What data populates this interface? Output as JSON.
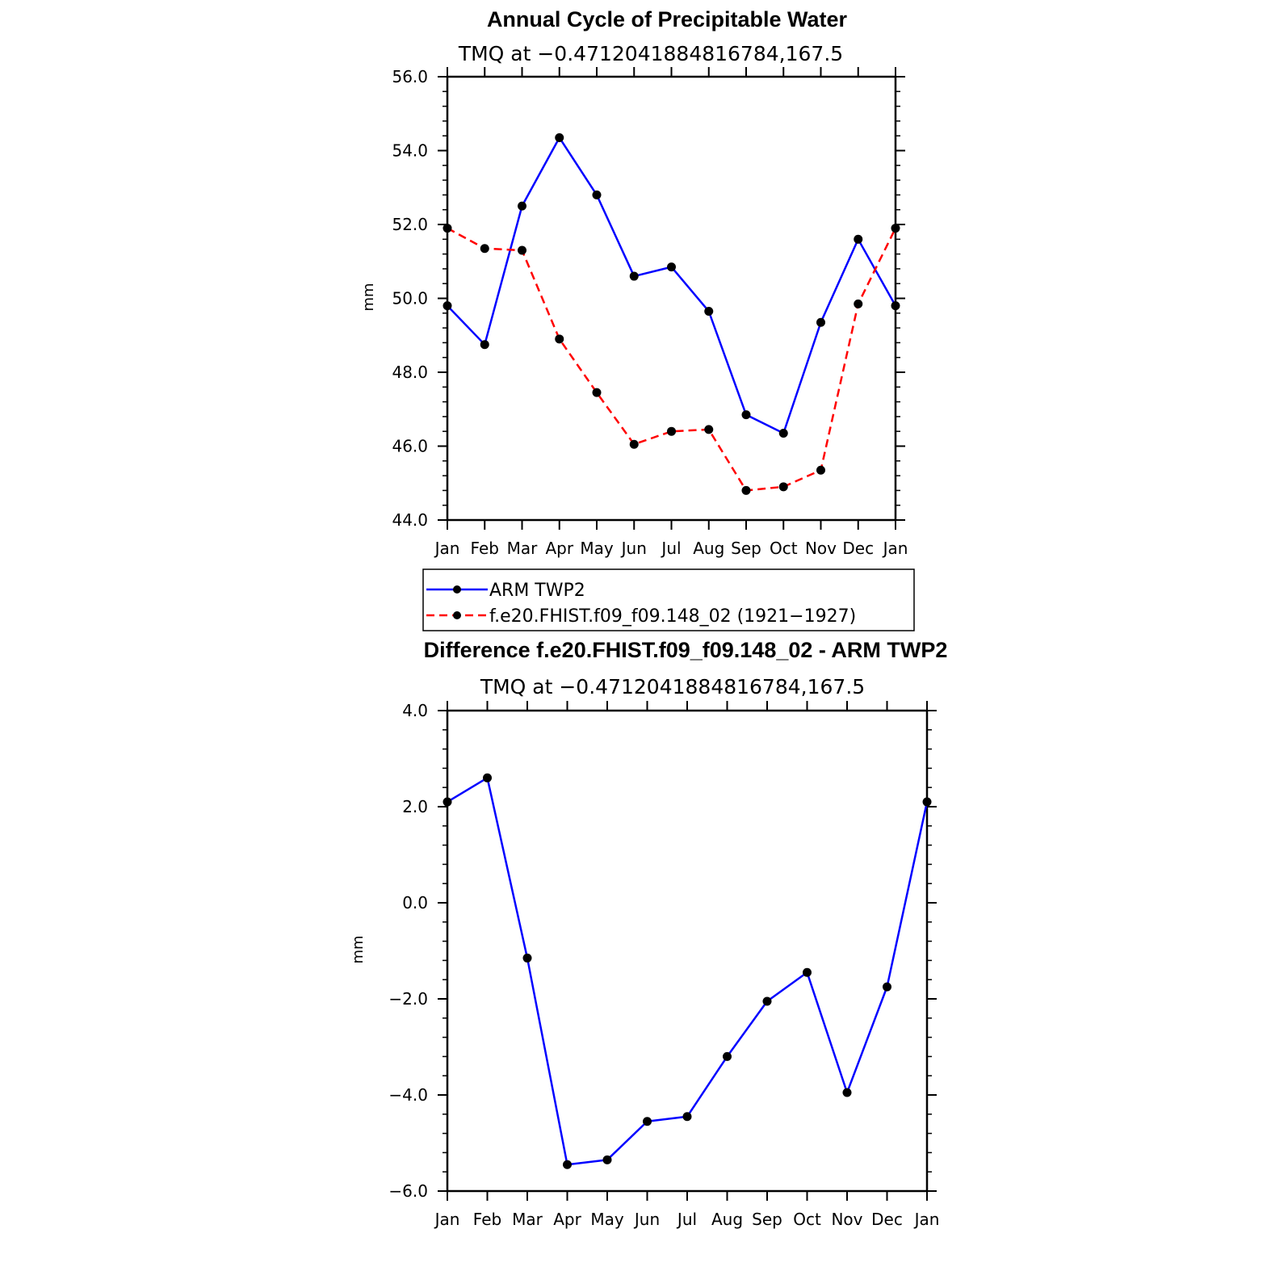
{
  "colors": {
    "arm": "#0000ff",
    "model": "#ff0000",
    "marker": "#000000"
  },
  "chart_data": [
    {
      "type": "line",
      "title": "Annual Cycle of Precipitable Water",
      "subtitle": "TMQ at −0.4712041884816784,167.5",
      "ylabel": "mm",
      "xlabel": "",
      "categories": [
        "Jan",
        "Feb",
        "Mar",
        "Apr",
        "May",
        "Jun",
        "Jul",
        "Aug",
        "Sep",
        "Oct",
        "Nov",
        "Dec",
        "Jan"
      ],
      "ylim": [
        44.0,
        56.0
      ],
      "yticks": [
        "44.0",
        "46.0",
        "48.0",
        "50.0",
        "52.0",
        "54.0",
        "56.0"
      ],
      "grid": false,
      "legend": "below",
      "series": [
        {
          "name": "ARM TWP2",
          "style": "solid",
          "color": "#0000ff",
          "values": [
            49.8,
            48.75,
            52.5,
            54.35,
            52.8,
            50.6,
            50.85,
            49.65,
            46.85,
            46.35,
            49.35,
            51.6,
            49.8
          ]
        },
        {
          "name": "f.e20.FHIST.f09_f09.148_02 (1921−1927)",
          "style": "dashed",
          "color": "#ff0000",
          "values": [
            51.9,
            51.35,
            51.3,
            48.9,
            47.45,
            46.05,
            46.4,
            46.45,
            44.8,
            44.9,
            45.35,
            49.85,
            51.9
          ]
        }
      ]
    },
    {
      "type": "line",
      "title": "Difference f.e20.FHIST.f09_f09.148_02 - ARM TWP2",
      "subtitle": "TMQ at −0.4712041884816784,167.5",
      "ylabel": "mm",
      "xlabel": "",
      "categories": [
        "Jan",
        "Feb",
        "Mar",
        "Apr",
        "May",
        "Jun",
        "Jul",
        "Aug",
        "Sep",
        "Oct",
        "Nov",
        "Dec",
        "Jan"
      ],
      "ylim": [
        -6.0,
        4.0
      ],
      "yticks": [
        "−6.0",
        "−4.0",
        "−2.0",
        "0.0",
        "2.0",
        "4.0"
      ],
      "grid": false,
      "series": [
        {
          "style": "solid",
          "color": "#0000ff",
          "values": [
            2.1,
            2.6,
            -1.15,
            -5.45,
            -5.35,
            -4.55,
            -4.45,
            -3.2,
            -2.05,
            -1.45,
            -3.95,
            -1.75,
            2.1
          ]
        }
      ]
    }
  ]
}
